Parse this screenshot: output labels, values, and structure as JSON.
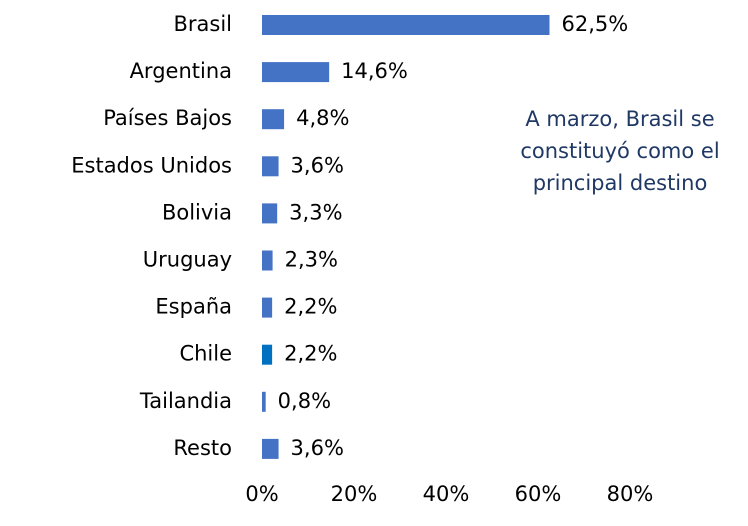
{
  "chart_data": {
    "type": "hbar",
    "categories": [
      "Brasil",
      "Argentina",
      "Países Bajos",
      "Estados Unidos",
      "Bolivia",
      "Uruguay",
      "España",
      "Chile",
      "Tailandia",
      "Resto"
    ],
    "values": [
      62.5,
      14.6,
      4.8,
      3.6,
      3.3,
      2.3,
      2.2,
      2.2,
      0.8,
      3.6
    ],
    "value_labels": [
      "62,5%",
      "14,6%",
      "4,8%",
      "3,6%",
      "3,3%",
      "2,3%",
      "2,2%",
      "2,2%",
      "0,8%",
      "3,6%"
    ],
    "colors": [
      "#4472c4",
      "#4472c4",
      "#4472c4",
      "#4472c4",
      "#4472c4",
      "#4472c4",
      "#4472c4",
      "#0070c0",
      "#4472c4",
      "#4472c4"
    ],
    "xlim": [
      0,
      80
    ],
    "xticks": [
      {
        "value": 0,
        "label": "0%"
      },
      {
        "value": 20,
        "label": "20%"
      },
      {
        "value": 40,
        "label": "40%"
      },
      {
        "value": 60,
        "label": "60%"
      },
      {
        "value": 80,
        "label": "80%"
      }
    ],
    "annotation": [
      "A marzo, Brasil se",
      "constituyó como el",
      "principal destino"
    ]
  }
}
